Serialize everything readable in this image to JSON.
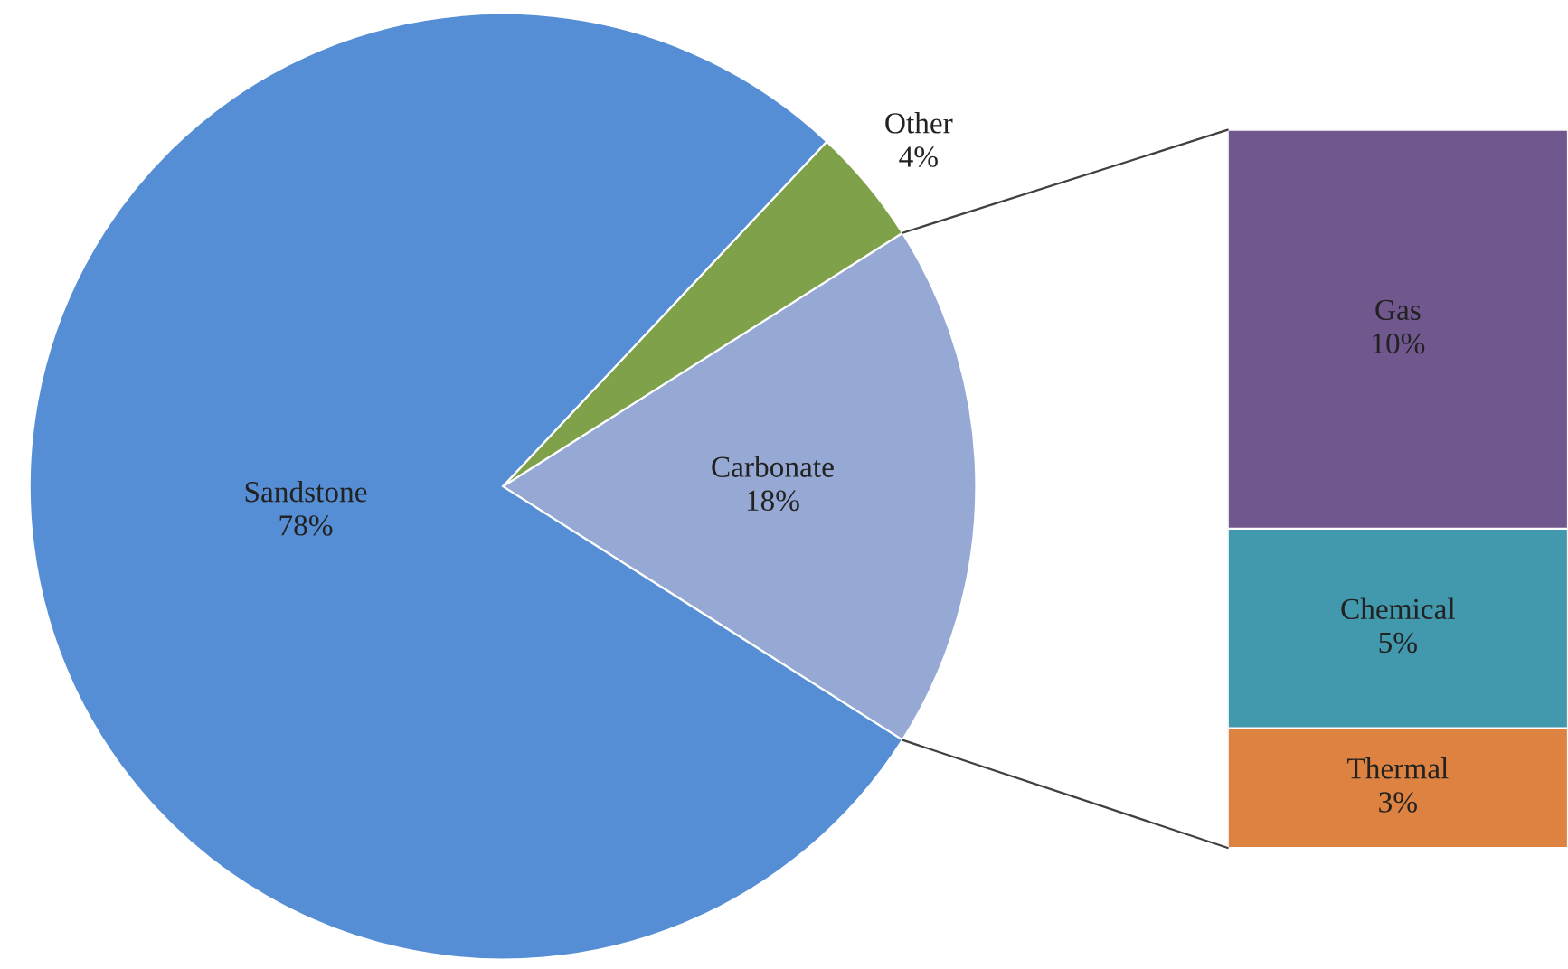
{
  "chart_data": [
    {
      "type": "pie",
      "categories": [
        "Carbonate",
        "Other",
        "Sandstone"
      ],
      "values": [
        18,
        4,
        78
      ],
      "value_labels": [
        "18%",
        "4%",
        "78%"
      ],
      "colors": [
        "#95a9d4",
        "#7ea14a",
        "#558ed5"
      ]
    },
    {
      "type": "bar",
      "stacked": true,
      "categories": [
        null
      ],
      "series": [
        {
          "name": "Thermal",
          "color": "#dd8240",
          "values": [
            3
          ],
          "value_labels": [
            "3%"
          ]
        },
        {
          "name": "Chemical",
          "color": "#4299ae",
          "values": [
            5
          ],
          "value_labels": [
            "5%"
          ]
        },
        {
          "name": "Gas",
          "color": "#70588f",
          "values": [
            10
          ],
          "value_labels": [
            "10%"
          ]
        }
      ]
    }
  ]
}
